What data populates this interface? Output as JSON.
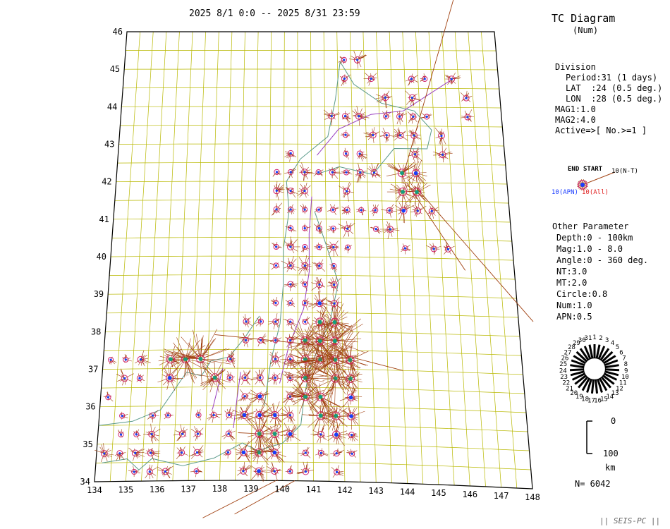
{
  "header": {
    "period": "2025 8/1 0:0 -- 2025 8/31 23:59",
    "title": "TC Diagram",
    "subtitle": "(Num)"
  },
  "division": {
    "heading": "Division",
    "period": "Period:31 (1 days)",
    "lat": "LAT  :24 (0.5 deg.)",
    "lon": "LON  :28 (0.5 deg.)",
    "mag1": "MAG1:1.0",
    "mag2": "MAG2:4.0",
    "active": "Active=>[ No.>=1 ]"
  },
  "legend": {
    "end_label": "END",
    "start_label": "START",
    "nt_label": "10(N-T)",
    "apn_label": "10(APN)",
    "all_label": "10(All)"
  },
  "other": {
    "heading": "Other Parameter",
    "depth": "Depth:0 - 100km",
    "mag": "Mag:1.0 - 8.0",
    "angle": "Angle:0 - 360 deg.",
    "nt": "NT:3.0",
    "mt": "MT:2.0",
    "circle": "Circle:0.8",
    "num": "Num:1.0",
    "apn": "APN:0.5"
  },
  "clock": {
    "day_labels": [
      "1",
      "2",
      "3",
      "4",
      "5",
      "6",
      "7",
      "8",
      "9",
      "10",
      "11",
      "12",
      "13",
      "14",
      "15",
      "16",
      "17",
      "18",
      "19",
      "20",
      "21",
      "22",
      "23",
      "24",
      "25",
      "26",
      "27",
      "28",
      "29",
      "30",
      "31"
    ]
  },
  "depth_scale": {
    "top": "0",
    "bottom": "100",
    "unit": "km"
  },
  "count": "N= 6042",
  "footer": "|| SEIS-PC ||",
  "map": {
    "lat_labels": [
      "34",
      "35",
      "36",
      "37",
      "38",
      "39",
      "40",
      "41",
      "42",
      "43",
      "44",
      "45",
      "46"
    ],
    "lon_labels": [
      "134",
      "135",
      "136",
      "137",
      "138",
      "139",
      "140",
      "141",
      "142",
      "143",
      "144",
      "145",
      "146",
      "147",
      "148"
    ],
    "grid_color": "#b8b800",
    "coast_color": "#5a9a8a",
    "volcanic_line_color": "#9a40c0",
    "trajectory_color": "#a04010",
    "symbol_ring_color": "#d0206a",
    "dot_apn_color": "#1a3cff",
    "dot_all_color": "#10a080"
  }
}
